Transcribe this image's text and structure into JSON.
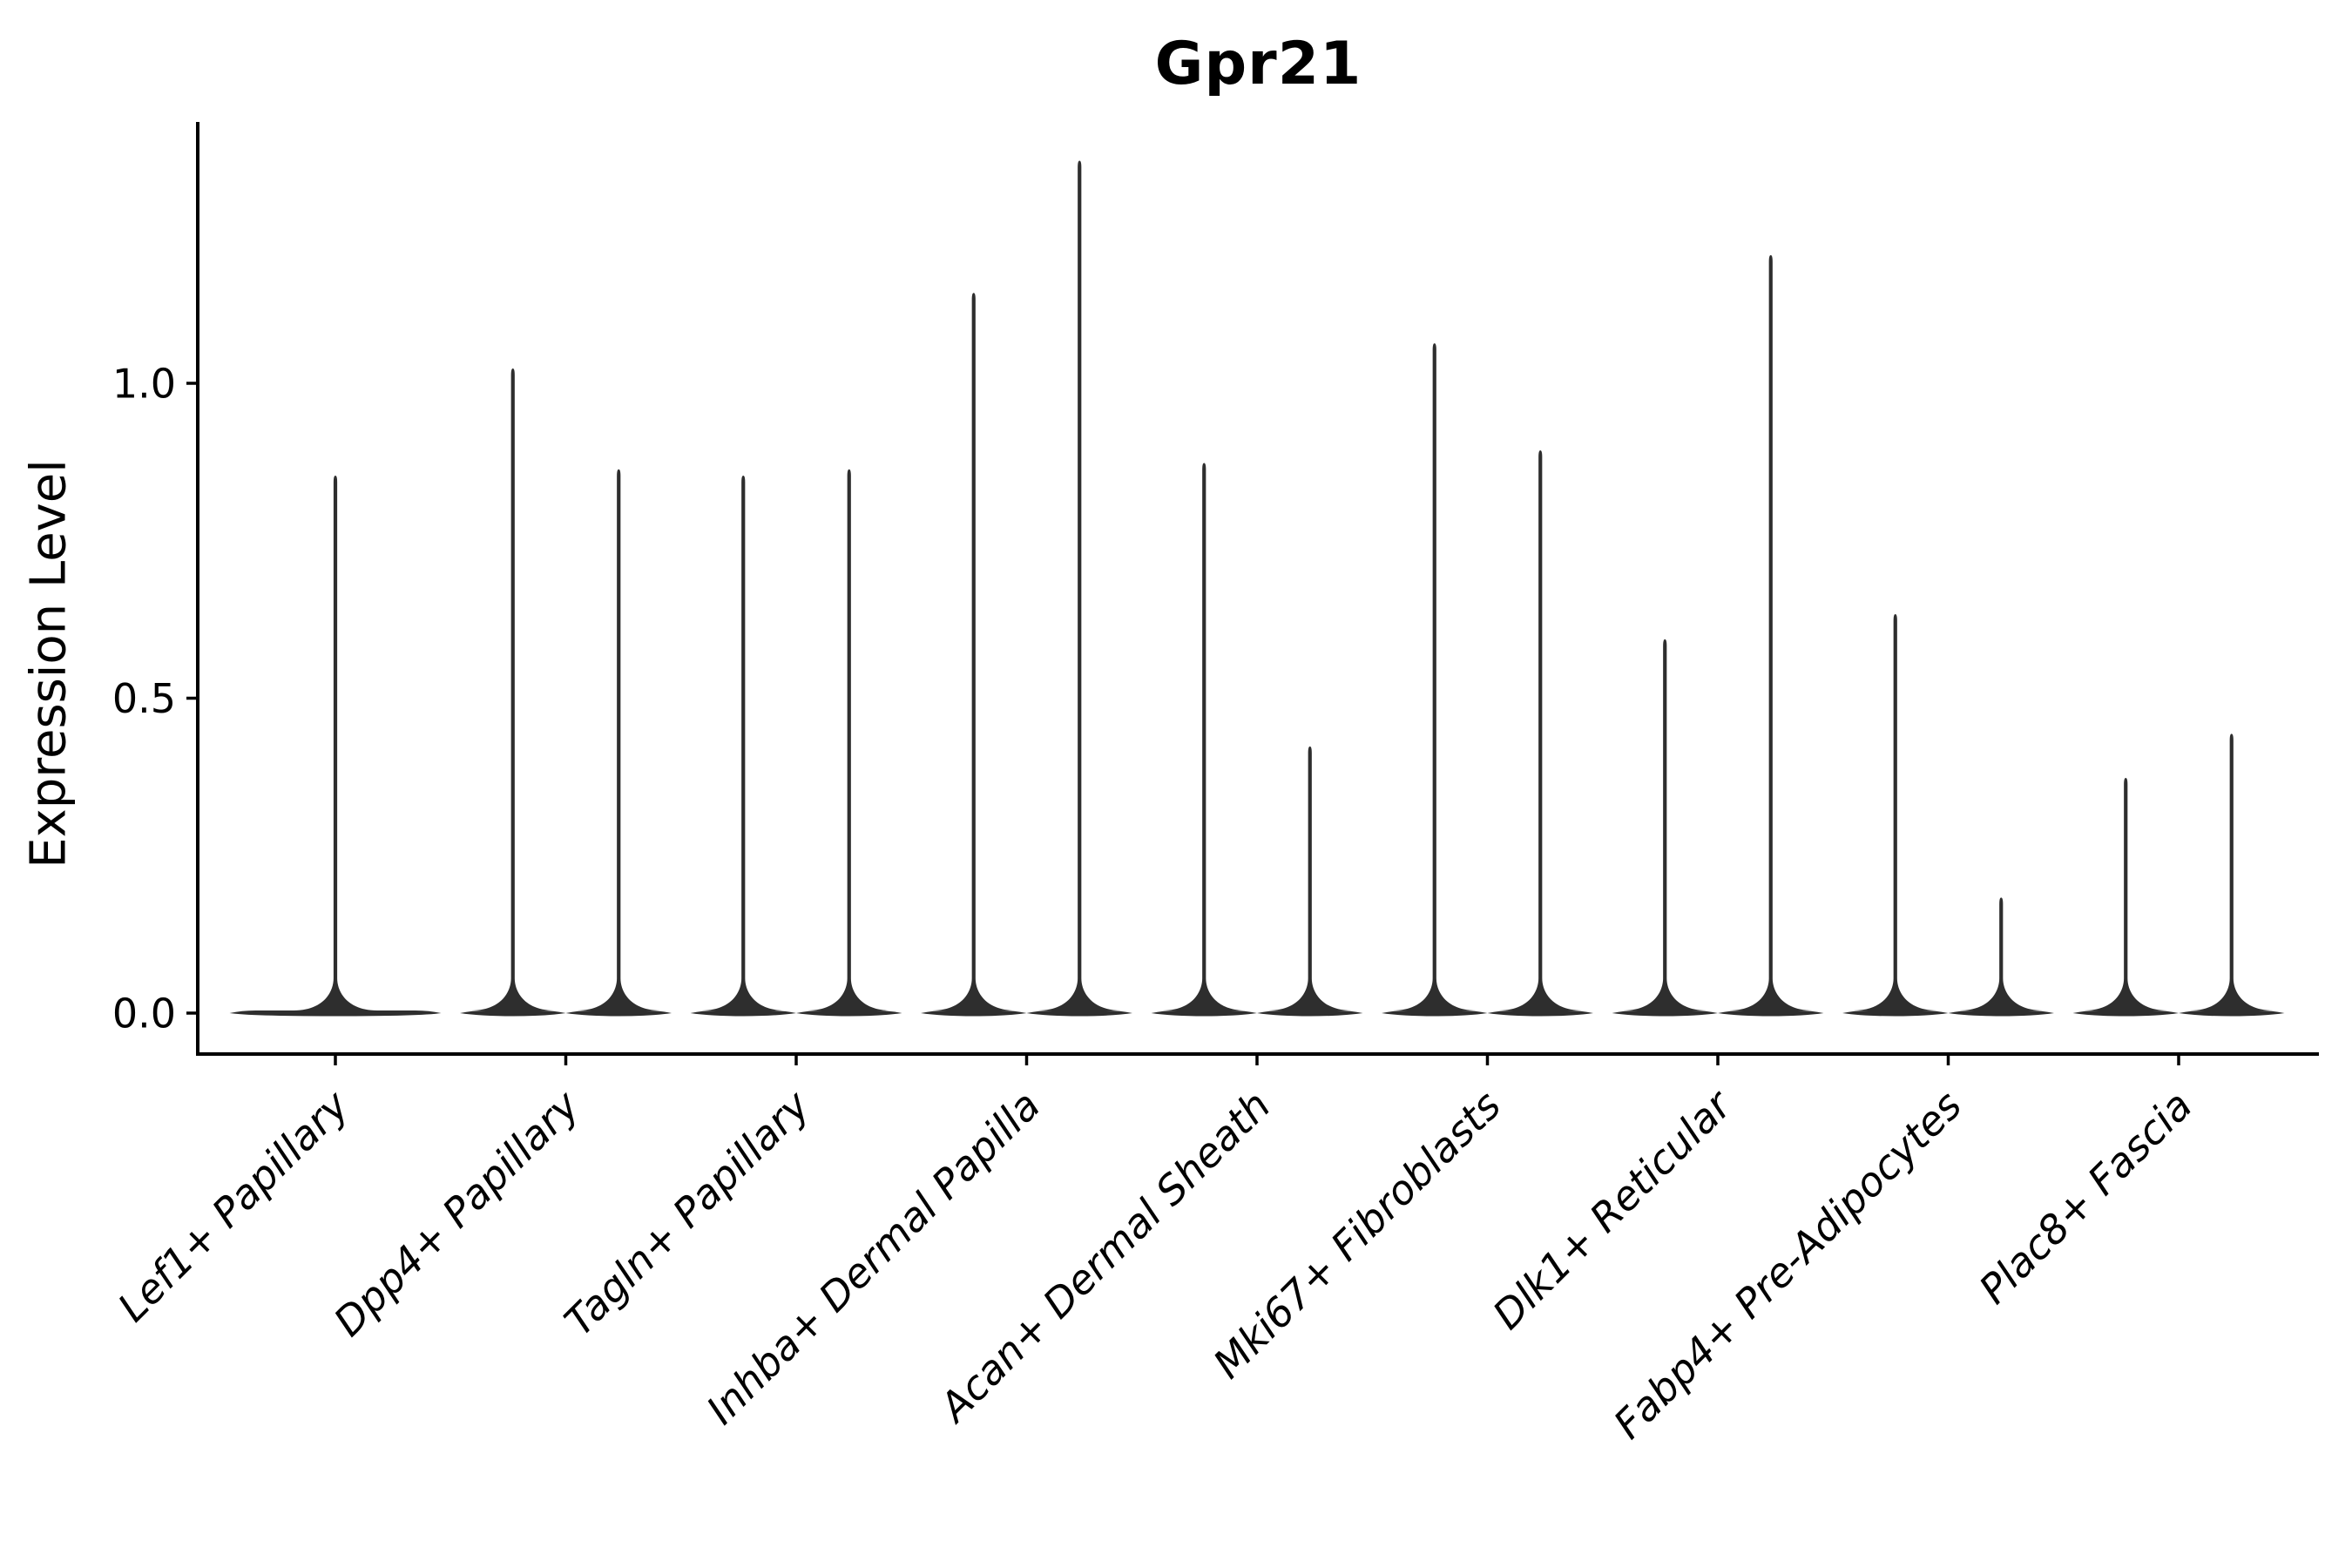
{
  "figure": {
    "background": "#ffffff",
    "ink_color": "#000000",
    "violin_color": "#2e2e2e"
  },
  "chart_data": {
    "type": "violin",
    "title": "Gpr21",
    "xlabel": "",
    "ylabel": "Expression Level",
    "ylim": [
      0,
      1.41
    ],
    "yticks": [
      0.0,
      0.5,
      1.0
    ],
    "ytick_labels": [
      "0.0",
      "0.5",
      "1.0"
    ],
    "grid": false,
    "legend": "none",
    "x_tick_rotation_deg": 45,
    "x_tick_style": "italic",
    "violin_shape": "needle (density concentrated at 0, thin spike to max expression)",
    "categories": [
      "Lef1+ Papillary",
      "Dpp4+ Papillary",
      "Tagln+ Papillary",
      "Inhba+ Dermal Papilla",
      "Acan+ Dermal Sheath",
      "Mki67+ Fibroblasts",
      "Dlk1+ Reticular",
      "Fabp4+ Pre-Adipocytes",
      "Plac8+ Fascia"
    ],
    "violins": [
      {
        "category": "Lef1+ Papillary",
        "peaks": [
          0.85
        ]
      },
      {
        "category": "Dpp4+ Papillary",
        "peaks": [
          1.02,
          0.86
        ]
      },
      {
        "category": "Tagln+ Papillary",
        "peaks": [
          0.85,
          0.86
        ]
      },
      {
        "category": "Inhba+ Dermal Papilla",
        "peaks": [
          1.14,
          1.35
        ]
      },
      {
        "category": "Acan+ Dermal Sheath",
        "peaks": [
          0.87,
          0.42
        ]
      },
      {
        "category": "Mki67+ Fibroblasts",
        "peaks": [
          1.06,
          0.89
        ]
      },
      {
        "category": "Dlk1+ Reticular",
        "peaks": [
          0.59,
          1.2
        ]
      },
      {
        "category": "Fabp4+ Pre-Adipocytes",
        "peaks": [
          0.63,
          0.18
        ]
      },
      {
        "category": "Plac8+ Fascia",
        "peaks": [
          0.37,
          0.44
        ]
      }
    ]
  }
}
